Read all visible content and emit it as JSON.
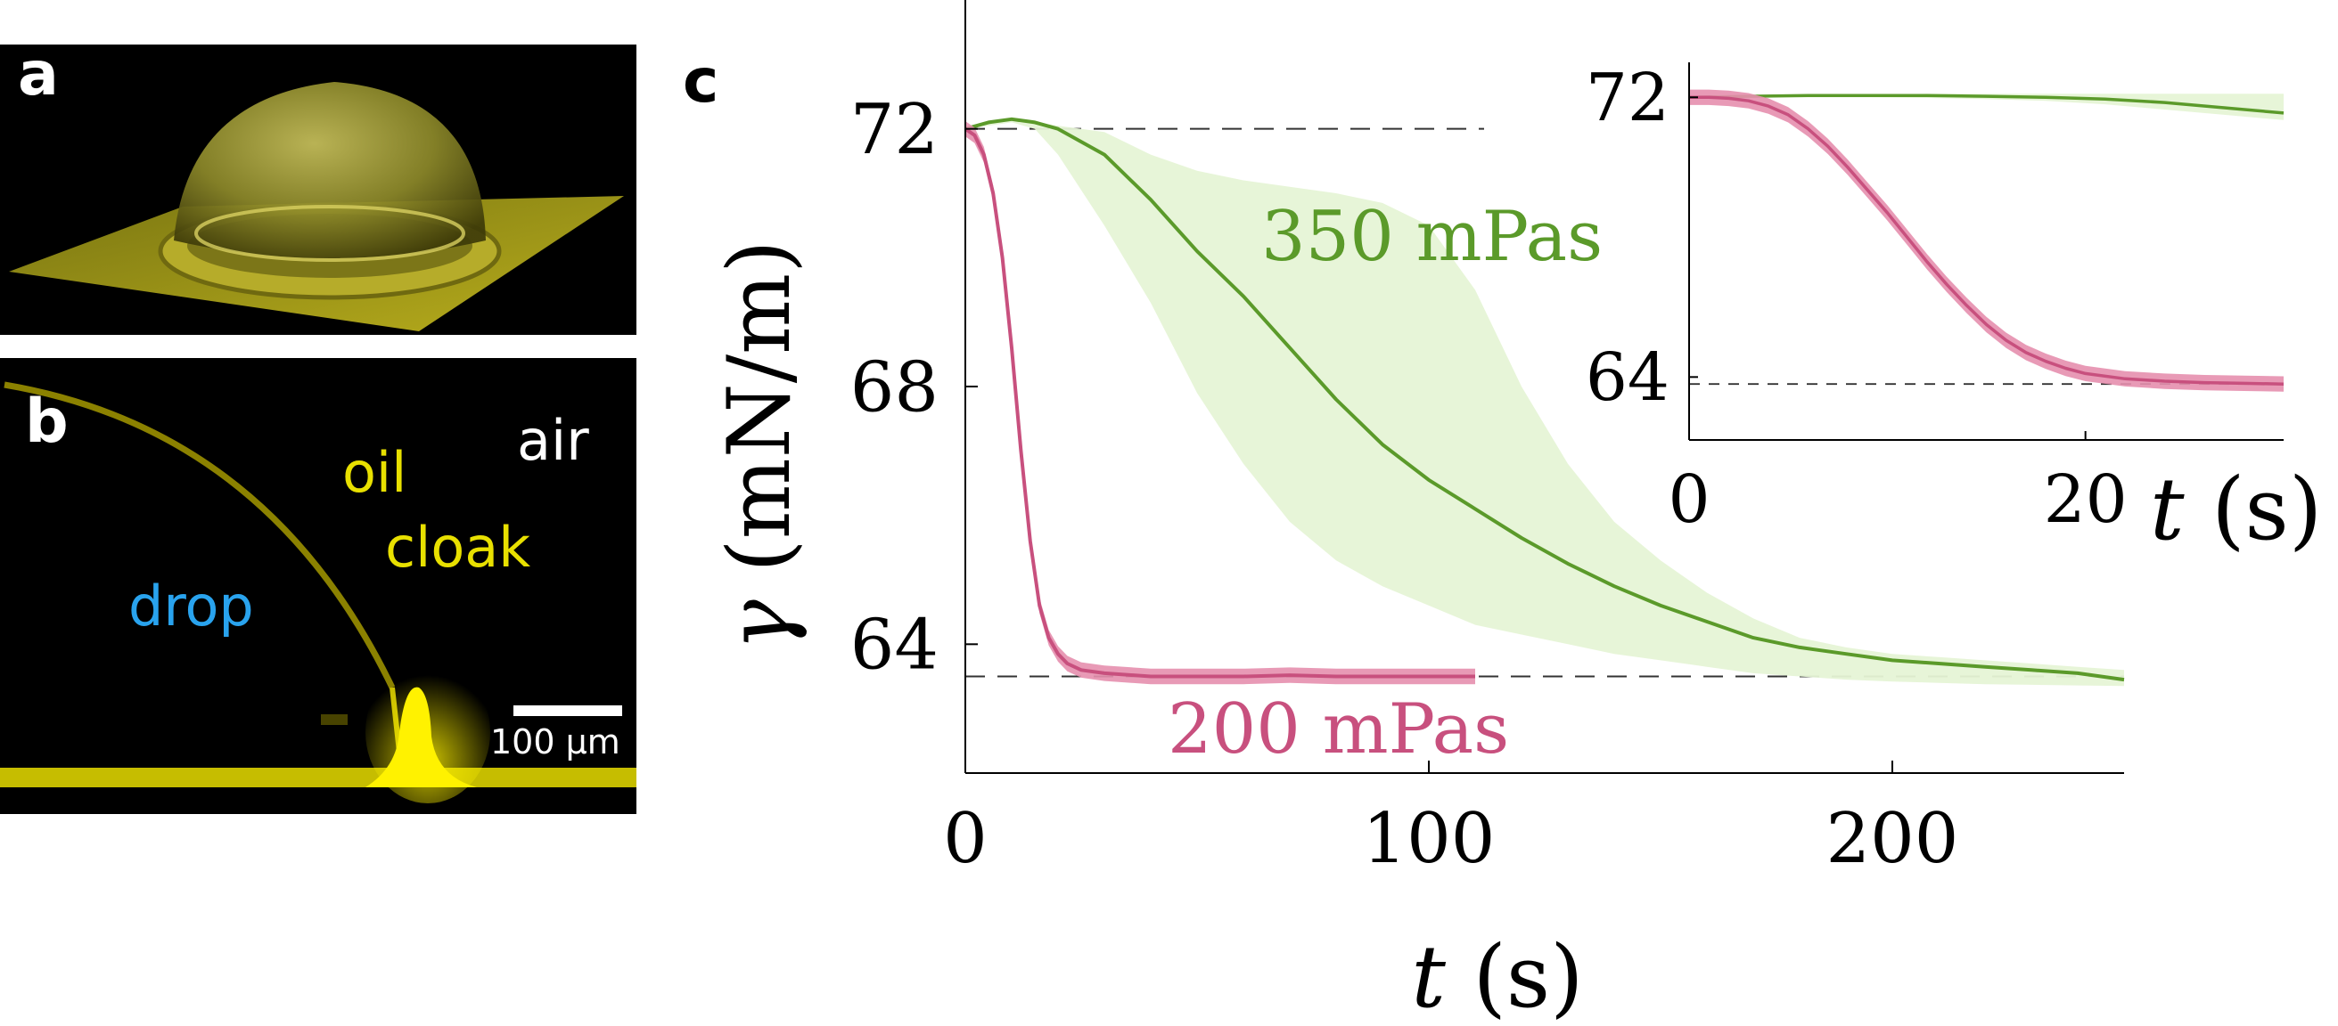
{
  "panels": {
    "a": {
      "label": "a"
    },
    "b": {
      "label": "b",
      "labels": {
        "air": "air",
        "oil": "oil",
        "cloak": "cloak",
        "drop": "drop"
      },
      "scale_bar": "100 μm"
    },
    "c": {
      "label": "c"
    }
  },
  "colors": {
    "green": "#5b9a2a",
    "green_band": "#e6f4d6",
    "pink": "#c8507e",
    "pink_band": "#e58fae",
    "micro_yellow": "#ffee00",
    "drop_blue": "#29a3ee"
  },
  "chart_data": [
    {
      "type": "line",
      "xlabel": "t (s)",
      "ylabel": "γ (mN/m)",
      "xlim": [
        0,
        250
      ],
      "ylim": [
        62,
        74
      ],
      "xticks": [
        0,
        100,
        200
      ],
      "yticks": [
        64,
        68,
        72
      ],
      "reference_lines": [
        72,
        63.5
      ],
      "series": [
        {
          "name": "350 mPas",
          "color": "#5b9a2a",
          "x": [
            0,
            5,
            10,
            15,
            20,
            30,
            40,
            50,
            60,
            70,
            80,
            90,
            100,
            110,
            120,
            130,
            140,
            150,
            160,
            170,
            180,
            190,
            200,
            210,
            220,
            230,
            240,
            250
          ],
          "y": [
            72.0,
            72.1,
            72.15,
            72.1,
            72.0,
            71.6,
            70.9,
            70.1,
            69.4,
            68.6,
            67.8,
            67.1,
            66.55,
            66.1,
            65.65,
            65.25,
            64.9,
            64.6,
            64.35,
            64.1,
            63.95,
            63.85,
            63.75,
            63.7,
            63.65,
            63.6,
            63.55,
            63.45
          ],
          "band_upper": [
            72.0,
            72.1,
            72.15,
            72.1,
            72.05,
            71.95,
            71.6,
            71.35,
            71.2,
            71.1,
            71.0,
            70.85,
            70.5,
            69.5,
            68.0,
            66.8,
            65.9,
            65.3,
            64.8,
            64.4,
            64.1,
            63.95,
            63.85,
            63.8,
            63.75,
            63.7,
            63.65,
            63.6
          ],
          "band_lower": [
            72.0,
            72.05,
            72.1,
            72.0,
            71.6,
            70.5,
            69.3,
            67.9,
            66.8,
            65.9,
            65.3,
            64.9,
            64.6,
            64.3,
            64.15,
            64.0,
            63.85,
            63.75,
            63.65,
            63.55,
            63.5,
            63.45,
            63.42,
            63.4,
            63.38,
            63.37,
            63.36,
            63.35
          ]
        },
        {
          "name": "200 mPas",
          "color": "#c8507e",
          "x": [
            0,
            2,
            4,
            6,
            8,
            10,
            12,
            14,
            16,
            18,
            20,
            22,
            25,
            30,
            40,
            50,
            60,
            70,
            80,
            90,
            100,
            110
          ],
          "y": [
            72.0,
            71.9,
            71.6,
            71.0,
            70.0,
            68.6,
            67.0,
            65.6,
            64.6,
            64.1,
            63.85,
            63.7,
            63.6,
            63.55,
            63.5,
            63.5,
            63.5,
            63.52,
            63.5,
            63.5,
            63.5,
            63.5
          ],
          "band_width": 0.12
        }
      ]
    },
    {
      "type": "line",
      "xlabel": "t (s)",
      "xlim": [
        0,
        30
      ],
      "ylim": [
        62.2,
        73
      ],
      "xticks": [
        0,
        20
      ],
      "yticks": [
        64,
        72
      ],
      "reference_lines": [
        63.8
      ],
      "series": [
        {
          "name": "350 mPas",
          "color": "#5b9a2a",
          "x": [
            0,
            3,
            6,
            9,
            12,
            15,
            18,
            21,
            24,
            27,
            30
          ],
          "y": [
            72.0,
            72.03,
            72.05,
            72.05,
            72.05,
            72.03,
            72.0,
            71.95,
            71.85,
            71.7,
            71.55
          ],
          "band_upper": [
            72.0,
            72.05,
            72.08,
            72.08,
            72.1,
            72.1,
            72.1,
            72.1,
            72.1,
            72.1,
            72.1
          ],
          "band_lower": [
            72.0,
            72.0,
            72.0,
            72.0,
            71.98,
            71.95,
            71.9,
            71.8,
            71.65,
            71.5,
            71.35
          ]
        },
        {
          "name": "200 mPas",
          "color": "#c8507e",
          "x": [
            0,
            1,
            2,
            3,
            4,
            5,
            6,
            7,
            8,
            9,
            10,
            11,
            12,
            13,
            14,
            15,
            16,
            17,
            18,
            19,
            20,
            22,
            24,
            26,
            28,
            30
          ],
          "y": [
            72.0,
            72.0,
            71.97,
            71.9,
            71.75,
            71.5,
            71.1,
            70.6,
            70.0,
            69.35,
            68.7,
            68.0,
            67.3,
            66.65,
            66.05,
            65.5,
            65.05,
            64.7,
            64.45,
            64.25,
            64.1,
            63.95,
            63.88,
            63.84,
            63.82,
            63.8
          ],
          "band_width": 0.22
        }
      ]
    }
  ]
}
